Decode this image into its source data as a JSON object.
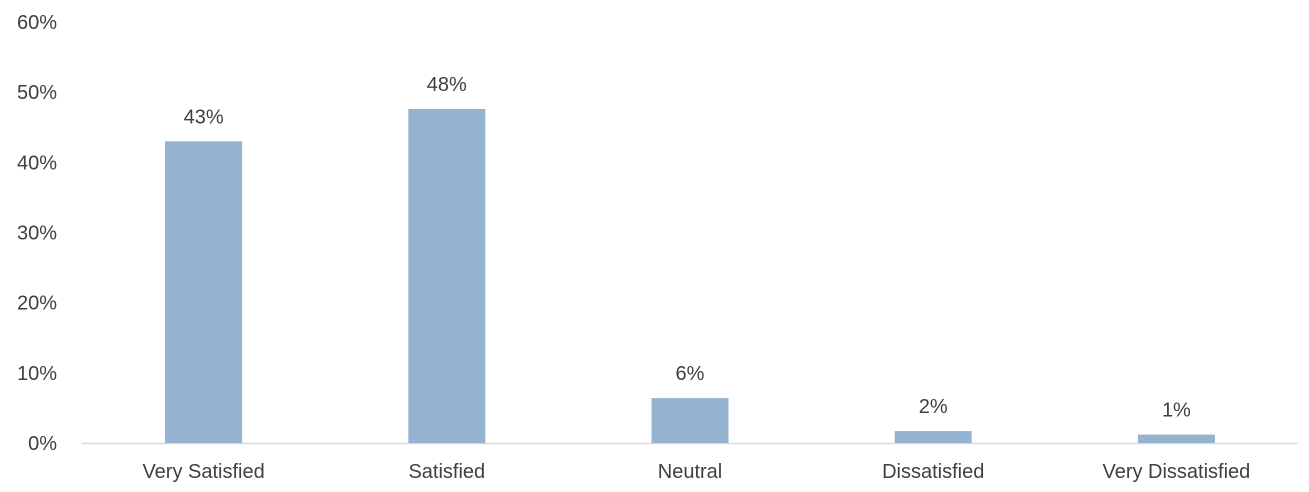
{
  "chart_data": {
    "type": "bar",
    "categories": [
      "Very Satisfied",
      "Satisfied",
      "Neutral",
      "Dissatisfied",
      "Very Dissatisfied"
    ],
    "values": [
      43,
      47.6,
      6.4,
      1.7,
      1.2
    ],
    "data_labels": [
      "43%",
      "48%",
      "6%",
      "2%",
      "1%"
    ],
    "ylim": [
      0,
      60
    ],
    "yticks": [
      0,
      10,
      20,
      30,
      40,
      50,
      60
    ],
    "ytick_labels": [
      "0%",
      "10%",
      "20%",
      "30%",
      "40%",
      "50%",
      "60%"
    ],
    "grid": false,
    "legend": "none",
    "bar_color": "#95B3D0",
    "axis_color": "#D9D9D9",
    "text_color": "#404040"
  }
}
